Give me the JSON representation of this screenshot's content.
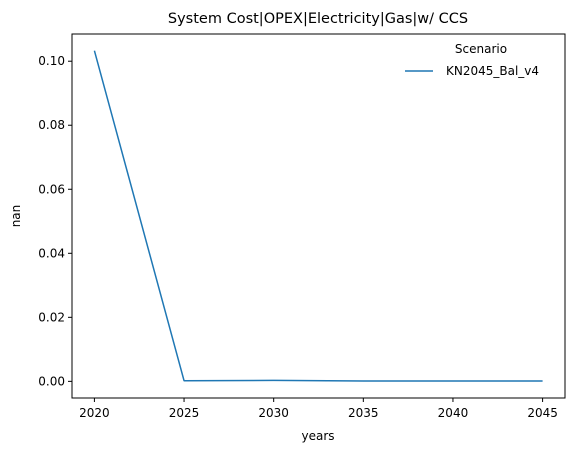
{
  "chart_data": {
    "type": "line",
    "title": "System Cost|OPEX|Electricity|Gas|w/ CCS",
    "xlabel": "years",
    "ylabel": "nan",
    "x": [
      2020,
      2025,
      2030,
      2035,
      2040,
      2045
    ],
    "x_ticks": [
      "2020",
      "2025",
      "2030",
      "2035",
      "2040",
      "2045"
    ],
    "y_ticks": [
      "0.00",
      "0.02",
      "0.04",
      "0.06",
      "0.08",
      "0.10"
    ],
    "xlim": [
      2018.75,
      2046.25
    ],
    "ylim": [
      -0.0052,
      0.1085
    ],
    "grid": false,
    "legend": {
      "title": "Scenario",
      "placement": "top-right"
    },
    "series": [
      {
        "name": "KN2045_Bal_v4",
        "color": "#1f77b4",
        "values": [
          0.1033,
          0.0002,
          0.0003,
          0.0001,
          0.0001,
          0.0001
        ]
      }
    ]
  }
}
